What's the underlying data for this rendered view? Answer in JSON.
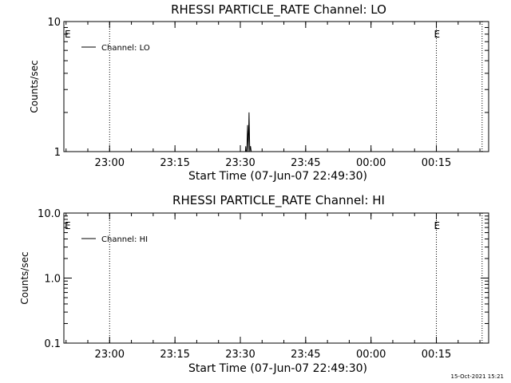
{
  "chart_data": [
    {
      "type": "line",
      "title": "RHESSI PARTICLE_RATE Channel: LO",
      "xlabel": "Start Time (07-Jun-07 22:49:30)",
      "ylabel": "Counts/sec",
      "y_scale": "log",
      "ylim": [
        1,
        10
      ],
      "y_ticks": [
        1,
        10
      ],
      "y_tick_labels": [
        "1",
        "10"
      ],
      "xlim": [
        "22:49:30",
        "00:27:00"
      ],
      "x_ticks": [
        "23:00",
        "23:15",
        "23:30",
        "23:45",
        "00:00",
        "00:15"
      ],
      "x_tick_labels": [
        "23:00",
        "23:15",
        "23:30",
        "23:45",
        "00:00",
        "00:15"
      ],
      "legend_position": "top-left",
      "series": [
        {
          "name": "Channel: LO",
          "color": "#000000",
          "x": [
            "23:31:00",
            "23:31:10",
            "23:31:15",
            "23:31:20",
            "23:31:30",
            "23:31:40",
            "23:31:50",
            "23:32:00",
            "23:32:10",
            "23:32:20",
            "23:32:30"
          ],
          "y": [
            1,
            1,
            1.1,
            1,
            1,
            1.6,
            1,
            2,
            1,
            1.1,
            1
          ]
        }
      ],
      "event_lines": [
        {
          "time": "23:00:00",
          "label": ""
        },
        {
          "time": "00:15:00",
          "label": "E"
        },
        {
          "time": "00:25:30",
          "label": ""
        }
      ],
      "edge_labels": [
        "E"
      ]
    },
    {
      "type": "line",
      "title": "RHESSI PARTICLE_RATE Channel: HI",
      "xlabel": "Start Time (07-Jun-07 22:49:30)",
      "ylabel": "Counts/sec",
      "y_scale": "log",
      "ylim": [
        0.1,
        10
      ],
      "y_ticks": [
        0.1,
        1,
        10
      ],
      "y_tick_labels": [
        "0.1",
        "1.0",
        "10.0"
      ],
      "xlim": [
        "22:49:30",
        "00:27:00"
      ],
      "x_ticks": [
        "23:00",
        "23:15",
        "23:30",
        "23:45",
        "00:00",
        "00:15"
      ],
      "x_tick_labels": [
        "23:00",
        "23:15",
        "23:30",
        "23:45",
        "00:00",
        "00:15"
      ],
      "legend_position": "top-left",
      "series": [
        {
          "name": "Channel: HI",
          "color": "#000000",
          "x": [],
          "y": []
        }
      ],
      "event_lines": [
        {
          "time": "23:00:00",
          "label": ""
        },
        {
          "time": "00:15:00",
          "label": "E"
        },
        {
          "time": "00:25:30",
          "label": ""
        }
      ],
      "edge_labels": [
        "E"
      ]
    }
  ],
  "footer": {
    "timestamp": "15-Oct-2021 15:21"
  }
}
